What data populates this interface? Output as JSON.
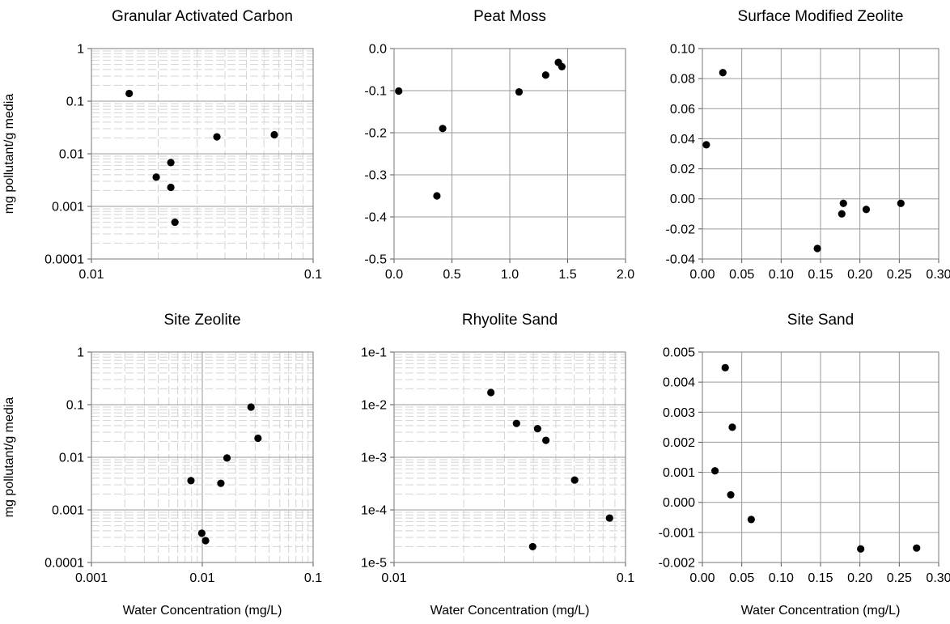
{
  "shared": {
    "ylabel": "mg pollutant/g media",
    "xlabel": "Water Concentration (mg/L)"
  },
  "chart_data": [
    {
      "type": "scatter",
      "title": "Granular Activated Carbon",
      "xlabel": "",
      "ylabel": "mg pollutant/g media",
      "xscale": "log",
      "yscale": "log",
      "xlim": [
        0.01,
        0.1
      ],
      "ylim": [
        0.0001,
        1
      ],
      "xticks": [
        "0.01",
        "0.1"
      ],
      "yticks": [
        "0.0001",
        "0.001",
        "0.01",
        "0.1",
        "1"
      ],
      "grid": "major and minor",
      "points": [
        {
          "x": 0.0148,
          "y": 0.14
        },
        {
          "x": 0.0196,
          "y": 0.0036
        },
        {
          "x": 0.0228,
          "y": 0.0068
        },
        {
          "x": 0.0228,
          "y": 0.0023
        },
        {
          "x": 0.0238,
          "y": 0.0005
        },
        {
          "x": 0.0368,
          "y": 0.021
        },
        {
          "x": 0.0668,
          "y": 0.023
        }
      ]
    },
    {
      "type": "scatter",
      "title": "Peat Moss",
      "xlabel": "",
      "ylabel": "",
      "xscale": "linear",
      "yscale": "linear",
      "xlim": [
        0,
        2
      ],
      "ylim": [
        -0.5,
        0
      ],
      "xticks": [
        "0.0",
        "0.5",
        "1.0",
        "1.5",
        "2.0"
      ],
      "yticks": [
        "-0.5",
        "-0.4",
        "-0.3",
        "-0.2",
        "-0.1",
        "0.0"
      ],
      "grid": "major",
      "points": [
        {
          "x": 0.04,
          "y": -0.101
        },
        {
          "x": 0.37,
          "y": -0.35
        },
        {
          "x": 0.42,
          "y": -0.19
        },
        {
          "x": 1.08,
          "y": -0.103
        },
        {
          "x": 1.31,
          "y": -0.063
        },
        {
          "x": 1.42,
          "y": -0.033
        },
        {
          "x": 1.45,
          "y": -0.043
        }
      ]
    },
    {
      "type": "scatter",
      "title": "Surface Modified Zeolite",
      "xlabel": "",
      "ylabel": "",
      "xscale": "linear",
      "yscale": "linear",
      "xlim": [
        0,
        0.3
      ],
      "ylim": [
        -0.04,
        0.1
      ],
      "xticks": [
        "0.00",
        "0.05",
        "0.10",
        "0.15",
        "0.20",
        "0.25",
        "0.30"
      ],
      "yticks": [
        "-0.04",
        "-0.02",
        "0.00",
        "0.02",
        "0.04",
        "0.06",
        "0.08",
        "0.10"
      ],
      "grid": "major",
      "points": [
        {
          "x": 0.005,
          "y": 0.036
        },
        {
          "x": 0.026,
          "y": 0.084
        },
        {
          "x": 0.146,
          "y": -0.033
        },
        {
          "x": 0.177,
          "y": -0.01
        },
        {
          "x": 0.179,
          "y": -0.003
        },
        {
          "x": 0.208,
          "y": -0.007
        },
        {
          "x": 0.252,
          "y": -0.003
        }
      ]
    },
    {
      "type": "scatter",
      "title": "Site Zeolite",
      "xlabel": "Water Concentration (mg/L)",
      "ylabel": "mg pollutant/g media",
      "xscale": "log",
      "yscale": "log",
      "xlim": [
        0.001,
        0.1
      ],
      "ylim": [
        0.0001,
        1
      ],
      "xticks": [
        "0.001",
        "0.01",
        "0.1"
      ],
      "yticks": [
        "0.0001",
        "0.001",
        "0.01",
        "0.1",
        "1"
      ],
      "grid": "major and minor",
      "points": [
        {
          "x": 0.0079,
          "y": 0.0036
        },
        {
          "x": 0.0099,
          "y": 0.00036
        },
        {
          "x": 0.0107,
          "y": 0.00026
        },
        {
          "x": 0.0147,
          "y": 0.0032
        },
        {
          "x": 0.0167,
          "y": 0.0097
        },
        {
          "x": 0.0275,
          "y": 0.09
        },
        {
          "x": 0.0318,
          "y": 0.023
        }
      ]
    },
    {
      "type": "scatter",
      "title": "Rhyolite Sand",
      "xlabel": "Water Concentration (mg/L)",
      "ylabel": "",
      "xscale": "log",
      "yscale": "log",
      "xlim": [
        0.01,
        0.1
      ],
      "ylim": [
        1e-05,
        0.1
      ],
      "xticks": [
        "0.01",
        "0.1"
      ],
      "yticks": [
        "1e-5",
        "1e-4",
        "1e-3",
        "1e-2",
        "1e-1"
      ],
      "grid": "major and minor",
      "points": [
        {
          "x": 0.0262,
          "y": 0.017
        },
        {
          "x": 0.0338,
          "y": 0.0044
        },
        {
          "x": 0.0397,
          "y": 2e-05
        },
        {
          "x": 0.0417,
          "y": 0.0035
        },
        {
          "x": 0.0453,
          "y": 0.0021
        },
        {
          "x": 0.0603,
          "y": 0.00037
        },
        {
          "x": 0.0853,
          "y": 7e-05
        }
      ]
    },
    {
      "type": "scatter",
      "title": "Site Sand",
      "xlabel": "Water Concentration (mg/L)",
      "ylabel": "",
      "xscale": "linear",
      "yscale": "linear",
      "xlim": [
        0,
        0.3
      ],
      "ylim": [
        -0.002,
        0.005
      ],
      "xticks": [
        "0.00",
        "0.05",
        "0.10",
        "0.15",
        "0.20",
        "0.25",
        "0.30"
      ],
      "yticks": [
        "-0.002",
        "-0.001",
        "0.000",
        "0.001",
        "0.002",
        "0.003",
        "0.004",
        "0.005"
      ],
      "grid": "major",
      "points": [
        {
          "x": 0.016,
          "y": 0.00105
        },
        {
          "x": 0.029,
          "y": 0.00448
        },
        {
          "x": 0.036,
          "y": 0.00025
        },
        {
          "x": 0.038,
          "y": 0.0025
        },
        {
          "x": 0.062,
          "y": -0.00057
        },
        {
          "x": 0.201,
          "y": -0.00155
        },
        {
          "x": 0.272,
          "y": -0.00152
        }
      ]
    }
  ]
}
